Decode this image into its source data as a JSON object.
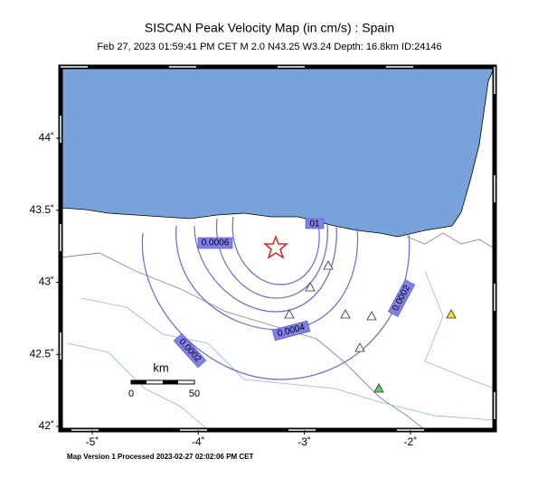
{
  "header": {
    "title": "SISCAN Peak Velocity Map (in cm/s) : Spain",
    "subtitle": "Feb 27, 2023 01:59:41 PM CET   M 2.0   N43.25 W3.24   Depth: 16.8km   ID:24146"
  },
  "axes": {
    "lat_ticks": [
      {
        "value": 44,
        "label": "44˚"
      },
      {
        "value": 43.5,
        "label": "43.5˚"
      },
      {
        "value": 43,
        "label": "43˚"
      },
      {
        "value": 42.5,
        "label": "42.5˚"
      },
      {
        "value": 42,
        "label": "42˚"
      }
    ],
    "lon_ticks": [
      {
        "value": -5,
        "label": "-5˚"
      },
      {
        "value": -4,
        "label": "-4˚"
      },
      {
        "value": -3,
        "label": "-3˚"
      },
      {
        "value": -2,
        "label": "-2˚"
      }
    ]
  },
  "contours": [
    "0.0006",
    "0.0004",
    "0.0002",
    "0.0002",
    "01"
  ],
  "scale": {
    "unit": "km",
    "start": "0",
    "end": "50"
  },
  "footer": "Map Version 1 Processed 2023-02-27 02:02:06 PM CET"
}
